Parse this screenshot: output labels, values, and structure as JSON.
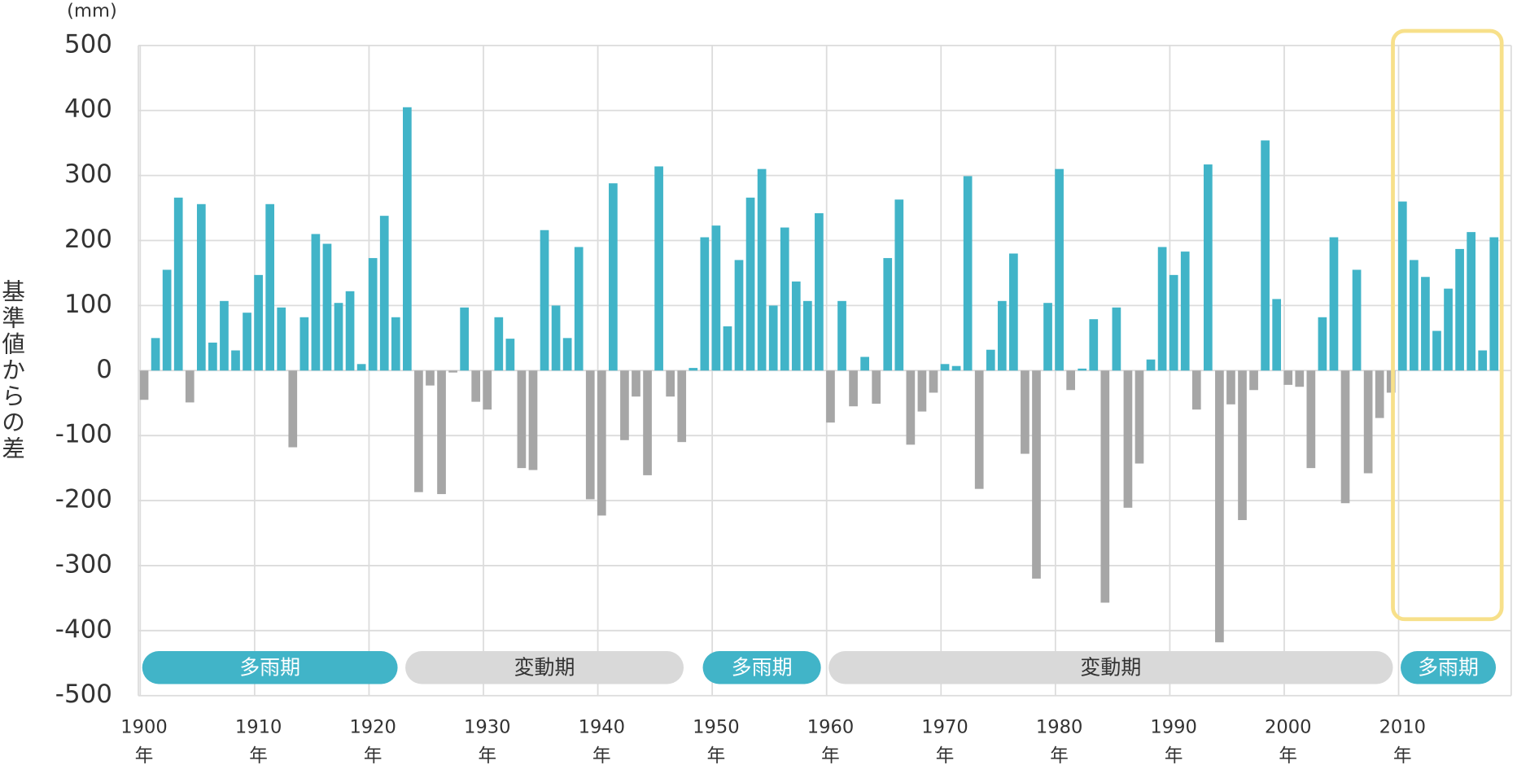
{
  "chart_data": {
    "type": "bar",
    "y_label": "基準値からの差",
    "unit": "(mm)",
    "x_unit": "年",
    "x": [
      1900,
      1901,
      1902,
      1903,
      1904,
      1905,
      1906,
      1907,
      1908,
      1909,
      1910,
      1911,
      1912,
      1913,
      1914,
      1915,
      1916,
      1917,
      1918,
      1919,
      1920,
      1921,
      1922,
      1923,
      1924,
      1925,
      1926,
      1927,
      1928,
      1929,
      1930,
      1931,
      1932,
      1933,
      1934,
      1935,
      1936,
      1937,
      1938,
      1939,
      1940,
      1941,
      1942,
      1943,
      1944,
      1945,
      1946,
      1947,
      1948,
      1949,
      1950,
      1951,
      1952,
      1953,
      1954,
      1955,
      1956,
      1957,
      1958,
      1959,
      1960,
      1961,
      1962,
      1963,
      1964,
      1965,
      1966,
      1967,
      1968,
      1969,
      1970,
      1971,
      1972,
      1973,
      1974,
      1975,
      1976,
      1977,
      1978,
      1979,
      1980,
      1981,
      1982,
      1983,
      1984,
      1985,
      1986,
      1987,
      1988,
      1989,
      1990,
      1991,
      1992,
      1993,
      1994,
      1995,
      1996,
      1997,
      1998,
      1999,
      2000,
      2001,
      2002,
      2003,
      2004,
      2005,
      2006,
      2007,
      2008,
      2009,
      2010,
      2011,
      2012,
      2013,
      2014,
      2015,
      2016,
      2017,
      2018
    ],
    "values": [
      -45,
      50,
      155,
      266,
      -49,
      256,
      43,
      107,
      31,
      89,
      147,
      256,
      97,
      -118,
      82,
      210,
      195,
      104,
      122,
      10,
      173,
      238,
      82,
      405,
      -187,
      -23,
      -190,
      -3,
      97,
      -48,
      -60,
      82,
      49,
      -150,
      -153,
      216,
      100,
      50,
      190,
      -198,
      -223,
      288,
      -107,
      -40,
      -161,
      314,
      -40,
      -110,
      4,
      205,
      223,
      68,
      170,
      266,
      310,
      100,
      220,
      137,
      107,
      242,
      -80,
      107,
      -55,
      21,
      -51,
      173,
      263,
      -114,
      -63,
      -34,
      10,
      7,
      299,
      -182,
      32,
      107,
      180,
      -128,
      -320,
      104,
      310,
      -30,
      3,
      79,
      -357,
      97,
      -211,
      -143,
      17,
      190,
      147,
      183,
      -60,
      317,
      -418,
      -52,
      -230,
      -30,
      354,
      110,
      -22,
      -25,
      -150,
      82,
      205,
      -204,
      155,
      -158,
      -73,
      -34,
      260,
      170,
      144,
      61,
      126,
      187,
      213,
      31,
      205
    ],
    "color_positive": "#41b4c8",
    "color_negative": "#a6a6a6",
    "xlim": [
      1899.5,
      2019.5
    ],
    "xticks": [
      1900,
      1910,
      1920,
      1930,
      1940,
      1950,
      1960,
      1970,
      1980,
      1990,
      2000,
      2010
    ],
    "ylim": [
      -500,
      500
    ],
    "yticks": [
      -500,
      -400,
      -300,
      -200,
      -100,
      0,
      100,
      200,
      300,
      400,
      500
    ],
    "grid": true,
    "periods": [
      {
        "label": "多雨期",
        "from": 1900,
        "to": 1922,
        "color": "#41b4c8"
      },
      {
        "label": "変動期",
        "from": 1923,
        "to": 1947,
        "color": "#d9d9d9"
      },
      {
        "label": "多雨期",
        "from": 1949,
        "to": 1959,
        "color": "#41b4c8"
      },
      {
        "label": "変動期",
        "from": 1960,
        "to": 2009,
        "color": "#d9d9d9"
      },
      {
        "label": "多雨期",
        "from": 2010,
        "to": 2018,
        "color": "#41b4c8"
      }
    ],
    "highlight": {
      "from": 2010,
      "to": 2018,
      "color": "#f7e08a"
    }
  }
}
